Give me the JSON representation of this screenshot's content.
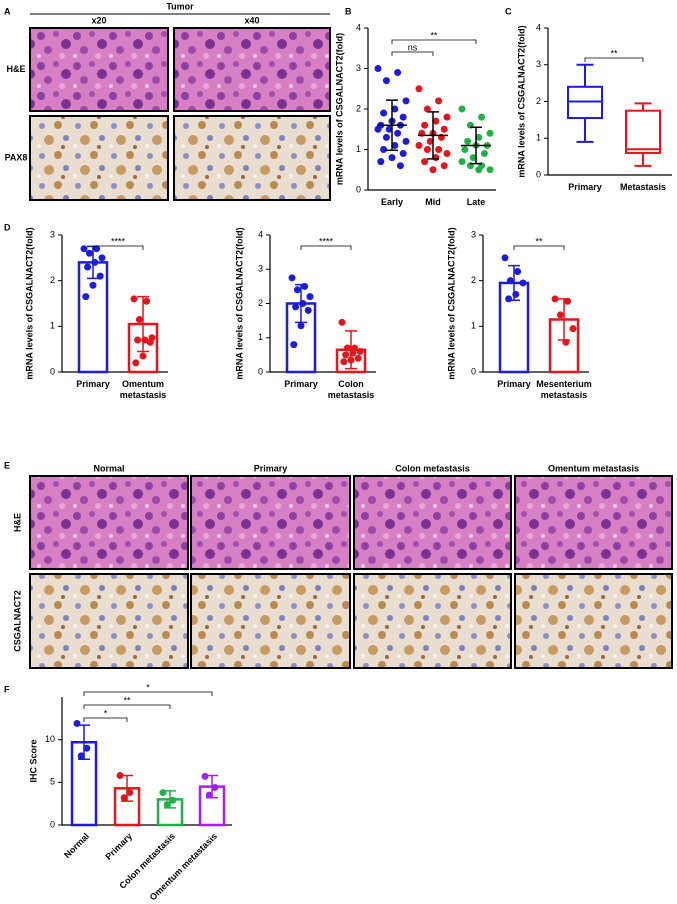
{
  "panel_letters": [
    "A",
    "B",
    "C",
    "D",
    "E",
    "F"
  ],
  "panel_a": {
    "title": "Tumor",
    "columns": [
      "x20",
      "x40"
    ],
    "rows": [
      "H&E",
      "PAX8"
    ]
  },
  "panel_e": {
    "columns": [
      "Normal",
      "Primary",
      "Colon metastasis",
      "Omentum metastasis"
    ],
    "rows": [
      "H&E",
      "CSGALNACT2"
    ]
  },
  "chart_data": [
    {
      "type": "dot",
      "ylabel": "mRNA levels of CSGALNACT2(fold)",
      "categories": [
        "Early",
        "Mid",
        "Late"
      ],
      "colors": [
        "#1c1cd9",
        "#e3151d",
        "#20b247"
      ],
      "ylim": [
        0,
        4
      ],
      "yticks": [
        0,
        1,
        2,
        3,
        4
      ],
      "values": [
        1.6,
        1.35,
        1.1
      ],
      "errors": [
        0.62,
        0.58,
        0.45
      ],
      "points": [
        [
          3.0,
          2.9,
          2.7,
          2.2,
          2.0,
          1.9,
          1.8,
          1.7,
          1.6,
          1.6,
          1.5,
          1.5,
          1.4,
          1.3,
          1.2,
          1.1,
          1.0,
          0.9,
          0.8,
          0.7,
          0.6
        ],
        [
          2.5,
          2.2,
          2.0,
          1.8,
          1.7,
          1.6,
          1.5,
          1.4,
          1.4,
          1.3,
          1.2,
          1.1,
          1.0,
          1.0,
          0.9,
          0.8,
          0.7,
          0.6,
          0.5
        ],
        [
          2.0,
          1.8,
          1.6,
          1.4,
          1.3,
          1.2,
          1.1,
          1.1,
          1.0,
          0.9,
          0.8,
          0.7,
          0.6,
          0.6,
          0.5,
          0.5
        ]
      ],
      "annotations": [
        {
          "text": "ns",
          "from": 0,
          "to": 1
        },
        {
          "text": "**",
          "from": 0,
          "to": 2
        }
      ]
    },
    {
      "type": "box",
      "ylabel": "mRNA levels of CSGALNACT2(fold)",
      "categories": [
        "Primary",
        "Metastasis"
      ],
      "colors": [
        "#1c1cd9",
        "#e3151d"
      ],
      "ylim": [
        0,
        4
      ],
      "yticks": [
        0,
        1,
        2,
        3,
        4
      ],
      "stats": [
        {
          "min": 0.9,
          "q1": 1.55,
          "median": 2.0,
          "q3": 2.4,
          "max": 3.0
        },
        {
          "min": 0.25,
          "q1": 0.6,
          "median": 0.7,
          "q3": 1.75,
          "max": 1.95
        }
      ],
      "annotations": [
        {
          "text": "**",
          "from": 0,
          "to": 1
        }
      ]
    },
    {
      "type": "bar",
      "ylabel": "mRNA levels of CSGALNACT2(fold)",
      "categories": [
        "Primary",
        "Omentum\nmetastasis"
      ],
      "colors": [
        "#1c1cd9",
        "#e3151d"
      ],
      "ylim": [
        0,
        3
      ],
      "yticks": [
        0,
        1,
        2,
        3
      ],
      "values": [
        2.4,
        1.05
      ],
      "errors": [
        0.35,
        0.6
      ],
      "points": [
        [
          2.7,
          2.7,
          2.6,
          2.5,
          2.4,
          2.3,
          2.1,
          1.9,
          1.65
        ],
        [
          1.6,
          1.55,
          1.15,
          0.75,
          0.7,
          0.7,
          0.65,
          0.35,
          0.2
        ]
      ],
      "annotations": [
        {
          "text": "****",
          "from": 0,
          "to": 1
        }
      ]
    },
    {
      "type": "bar",
      "ylabel": "mRNA levels of CSGALNACT2(fold)",
      "categories": [
        "Primary",
        "Colon\nmetastasis"
      ],
      "colors": [
        "#1c1cd9",
        "#e3151d"
      ],
      "ylim": [
        0,
        4
      ],
      "yticks": [
        0,
        1,
        2,
        3,
        4
      ],
      "values": [
        2.0,
        0.65
      ],
      "errors": [
        0.55,
        0.55
      ],
      "points": [
        [
          2.75,
          2.5,
          2.4,
          2.2,
          2.0,
          1.9,
          1.8,
          1.35,
          0.8
        ],
        [
          1.45,
          0.7,
          0.7,
          0.6,
          0.55,
          0.5,
          0.4,
          0.35,
          0.3
        ]
      ],
      "annotations": [
        {
          "text": "****",
          "from": 0,
          "to": 1
        }
      ]
    },
    {
      "type": "bar",
      "ylabel": "mRNA levels of CSGALNACT2(fold)",
      "categories": [
        "Primary",
        "Mesenterium\nmetastasis"
      ],
      "colors": [
        "#1c1cd9",
        "#e3151d"
      ],
      "ylim": [
        0,
        3
      ],
      "yticks": [
        0,
        1,
        2,
        3
      ],
      "values": [
        1.95,
        1.15
      ],
      "errors": [
        0.38,
        0.45
      ],
      "points": [
        [
          2.5,
          2.2,
          2.0,
          1.95,
          1.7,
          1.6
        ],
        [
          1.6,
          1.55,
          1.25,
          0.95,
          0.65
        ]
      ],
      "annotations": [
        {
          "text": "**",
          "from": 0,
          "to": 1
        }
      ]
    },
    {
      "type": "bar",
      "ylabel": "IHC Score",
      "categories": [
        "Normal",
        "Primary",
        "Colon metastasis",
        "Omentum metastasis"
      ],
      "colors": [
        "#1c1cd9",
        "#e3151d",
        "#20b247",
        "#a020f0"
      ],
      "ylim": [
        0,
        15
      ],
      "yticks": [
        0,
        5,
        10
      ],
      "values": [
        9.7,
        4.3,
        3.0,
        4.5
      ],
      "errors": [
        2.0,
        1.5,
        1.0,
        1.3
      ],
      "points": [
        [
          11.9,
          9.0,
          8.1
        ],
        [
          5.8,
          3.8,
          3.2
        ],
        [
          3.8,
          2.9,
          2.4
        ],
        [
          5.7,
          4.4,
          3.5
        ]
      ],
      "annotations": [
        {
          "text": "*",
          "from": 0,
          "to": 1
        },
        {
          "text": "**",
          "from": 0,
          "to": 2
        },
        {
          "text": "*",
          "from": 0,
          "to": 3
        }
      ]
    }
  ]
}
